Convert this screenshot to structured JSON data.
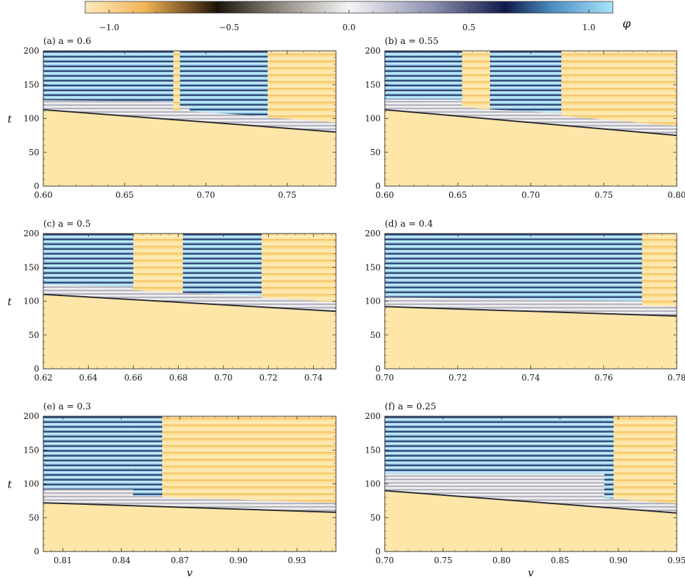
{
  "colorbar": {
    "label": "φ",
    "ticks": [
      {
        "value": -1.0,
        "label": "−1.0"
      },
      {
        "value": -0.5,
        "label": "−0.5"
      },
      {
        "value": 0.0,
        "label": "0.0"
      },
      {
        "value": 0.5,
        "label": "0.5"
      },
      {
        "value": 1.0,
        "label": "1.0"
      }
    ],
    "range": [
      -1.1,
      1.1
    ],
    "stops": [
      {
        "value": -1.1,
        "color": "#fdeac0"
      },
      {
        "value": -0.85,
        "color": "#f1b457"
      },
      {
        "value": -0.65,
        "color": "#6a4920"
      },
      {
        "value": -0.55,
        "color": "#1b1408"
      },
      {
        "value": -0.3,
        "color": "#8c857c"
      },
      {
        "value": 0.0,
        "color": "#f5f5f5"
      },
      {
        "value": 0.35,
        "color": "#8c8fae"
      },
      {
        "value": 0.65,
        "color": "#101a4a"
      },
      {
        "value": 0.85,
        "color": "#4c8fc4"
      },
      {
        "value": 1.1,
        "color": "#a9e3fa"
      }
    ]
  },
  "colors": {
    "orange": "#fcdb8c",
    "orange_light": "#fde6a8",
    "blue": "#a6dcf5",
    "dark_blue": "#162552",
    "white": "#f4f4f4",
    "dark": "#2a2a30"
  },
  "chart_data": [
    {
      "type": "heatmap",
      "title": "(a) a = 0.6",
      "xlabel": "",
      "ylabel": "t",
      "xlim": [
        0.6,
        0.78
      ],
      "ylim": [
        0,
        200
      ],
      "xticks": [
        0.6,
        0.65,
        0.7,
        0.75
      ],
      "xtick_labels": [
        "0.60",
        "0.65",
        "0.70",
        "0.75"
      ],
      "yticks": [
        0,
        50,
        100,
        150,
        200
      ],
      "ytick_labels": [
        "0",
        "50",
        "100",
        "150",
        "200"
      ],
      "front_t": [
        [
          0.6,
          113
        ],
        [
          0.78,
          80
        ]
      ],
      "segments": [
        {
          "v0": 0.6,
          "v1": 0.68,
          "phase": "striped",
          "t_start": 125
        },
        {
          "v0": 0.68,
          "v1": 0.684,
          "phase": "ordered"
        },
        {
          "v0": 0.684,
          "v1": 0.69,
          "phase": "striped",
          "t_start": 118
        },
        {
          "v0": 0.69,
          "v1": 0.738,
          "phase": "striped",
          "t_start": 103
        },
        {
          "v0": 0.738,
          "v1": 0.78,
          "phase": "ordered"
        }
      ]
    },
    {
      "type": "heatmap",
      "title": "(b) a = 0.55",
      "xlabel": "",
      "ylabel": "",
      "xlim": [
        0.6,
        0.8
      ],
      "ylim": [
        0,
        200
      ],
      "xticks": [
        0.6,
        0.65,
        0.7,
        0.75,
        0.8
      ],
      "xtick_labels": [
        "0.60",
        "0.65",
        "0.70",
        "0.75",
        "0.80"
      ],
      "yticks": [
        0,
        50,
        100,
        150,
        200
      ],
      "ytick_labels": [
        "0",
        "50",
        "100",
        "150",
        "200"
      ],
      "front_t": [
        [
          0.6,
          113
        ],
        [
          0.8,
          75
        ]
      ],
      "segments": [
        {
          "v0": 0.6,
          "v1": 0.653,
          "phase": "striped",
          "t_start": 128
        },
        {
          "v0": 0.653,
          "v1": 0.672,
          "phase": "ordered"
        },
        {
          "v0": 0.672,
          "v1": 0.721,
          "phase": "striped",
          "t_start": 108
        },
        {
          "v0": 0.721,
          "v1": 0.8,
          "phase": "ordered"
        }
      ]
    },
    {
      "type": "heatmap",
      "title": "(c) a = 0.5",
      "xlabel": "",
      "ylabel": "t",
      "xlim": [
        0.62,
        0.75
      ],
      "ylim": [
        0,
        200
      ],
      "xticks": [
        0.62,
        0.64,
        0.66,
        0.68,
        0.7,
        0.72,
        0.74
      ],
      "xtick_labels": [
        "0.62",
        "0.64",
        "0.66",
        "0.68",
        "0.70",
        "0.72",
        "0.74"
      ],
      "yticks": [
        0,
        50,
        100,
        150,
        200
      ],
      "ytick_labels": [
        "0",
        "50",
        "100",
        "150",
        "200"
      ],
      "front_t": [
        [
          0.62,
          110
        ],
        [
          0.75,
          85
        ]
      ],
      "segments": [
        {
          "v0": 0.62,
          "v1": 0.66,
          "phase": "striped",
          "t_start": 122
        },
        {
          "v0": 0.66,
          "v1": 0.682,
          "phase": "ordered"
        },
        {
          "v0": 0.682,
          "v1": 0.717,
          "phase": "striped",
          "t_start": 108
        },
        {
          "v0": 0.717,
          "v1": 0.75,
          "phase": "ordered"
        }
      ]
    },
    {
      "type": "heatmap",
      "title": "(d) a = 0.4",
      "xlabel": "",
      "ylabel": "",
      "xlim": [
        0.7,
        0.78
      ],
      "ylim": [
        0,
        200
      ],
      "xticks": [
        0.7,
        0.72,
        0.74,
        0.76,
        0.78
      ],
      "xtick_labels": [
        "0.70",
        "0.72",
        "0.74",
        "0.76",
        "0.78"
      ],
      "yticks": [
        0,
        50,
        100,
        150,
        200
      ],
      "ytick_labels": [
        "0",
        "50",
        "100",
        "150",
        "200"
      ],
      "front_t": [
        [
          0.7,
          92
        ],
        [
          0.78,
          78
        ]
      ],
      "segments": [
        {
          "v0": 0.7,
          "v1": 0.7705,
          "phase": "striped",
          "t_start": 100
        },
        {
          "v0": 0.7705,
          "v1": 0.78,
          "phase": "ordered"
        }
      ]
    },
    {
      "type": "heatmap",
      "title": "(e) a = 0.3",
      "xlabel": "v",
      "ylabel": "t",
      "xlim": [
        0.8,
        0.95
      ],
      "ylim": [
        0,
        200
      ],
      "xticks": [
        0.81,
        0.84,
        0.87,
        0.9,
        0.93
      ],
      "xtick_labels": [
        "0.81",
        "0.84",
        "0.87",
        "0.90",
        "0.93"
      ],
      "yticks": [
        0,
        50,
        100,
        150,
        200
      ],
      "ytick_labels": [
        "0",
        "50",
        "100",
        "150",
        "200"
      ],
      "front_t": [
        [
          0.8,
          72
        ],
        [
          0.95,
          58
        ]
      ],
      "segments": [
        {
          "v0": 0.8,
          "v1": 0.846,
          "phase": "striped",
          "t_start": 92
        },
        {
          "v0": 0.846,
          "v1": 0.861,
          "phase": "striped",
          "t_start": 82
        },
        {
          "v0": 0.861,
          "v1": 0.95,
          "phase": "ordered"
        }
      ]
    },
    {
      "type": "heatmap",
      "title": "(f) a = 0.25",
      "xlabel": "v",
      "ylabel": "",
      "xlim": [
        0.7,
        0.95
      ],
      "ylim": [
        0,
        200
      ],
      "xticks": [
        0.7,
        0.75,
        0.8,
        0.85,
        0.9,
        0.95
      ],
      "xtick_labels": [
        "0.70",
        "0.75",
        "0.80",
        "0.85",
        "0.90",
        "0.95"
      ],
      "yticks": [
        0,
        50,
        100,
        150,
        200
      ],
      "ytick_labels": [
        "0",
        "50",
        "100",
        "150",
        "200"
      ],
      "front_t": [
        [
          0.7,
          90
        ],
        [
          0.95,
          57
        ]
      ],
      "segments": [
        {
          "v0": 0.7,
          "v1": 0.888,
          "phase": "striped",
          "t_start": 115
        },
        {
          "v0": 0.888,
          "v1": 0.896,
          "phase": "striped",
          "t_start": 75
        },
        {
          "v0": 0.896,
          "v1": 0.95,
          "phase": "ordered"
        }
      ]
    }
  ]
}
